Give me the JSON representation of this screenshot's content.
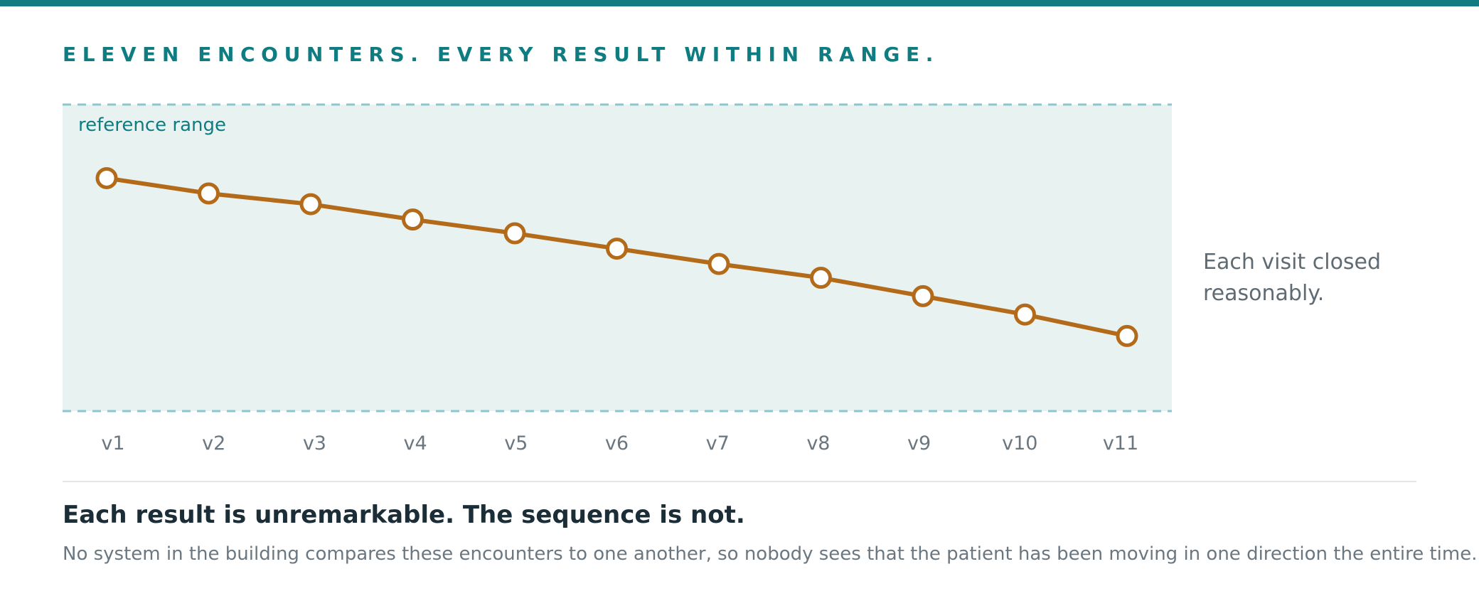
{
  "headline": "ELEVEN ENCOUNTERS. EVERY RESULT WITHIN RANGE.",
  "side_note": "Each visit closed reasonably.",
  "takeaway": "Each result is unremarkable. The sequence is not.",
  "explanation": "No system in the building compares these encounters to one another, so nobody sees that the patient has been moving in one direction the entire time.",
  "colors": {
    "accent": "#0e7c80",
    "series": "#b36b1a",
    "range_fill": "#e8f2f1",
    "range_line": "#8cc6cf"
  },
  "chart_data": {
    "type": "line",
    "title": "",
    "xlabel": "",
    "ylabel": "",
    "categories": [
      "v1",
      "v2",
      "v3",
      "v4",
      "v5",
      "v6",
      "v7",
      "v8",
      "v9",
      "v10",
      "v11"
    ],
    "series": [
      {
        "values": [
          76,
          71,
          67.5,
          62.5,
          58,
          53,
          48,
          43.5,
          37.5,
          31.5,
          24.5
        ]
      }
    ],
    "ylim": [
      0,
      100
    ],
    "reference_range": {
      "label": "reference range",
      "low": 0,
      "high": 100
    },
    "grid": false,
    "legend": "none"
  }
}
